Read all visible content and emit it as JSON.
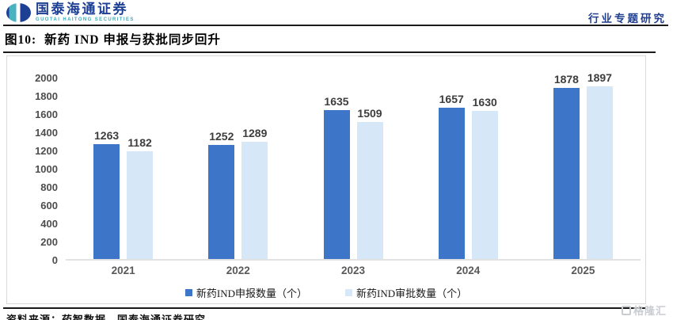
{
  "header": {
    "logo_name": "国泰海通证券",
    "logo_sub": "GUOTAI HAITONG SECURITIES",
    "report_type": "行业专题研究"
  },
  "figure": {
    "title_prefix": "图10:",
    "title": "新药 IND 申报与获批同步回升"
  },
  "chart_data": {
    "type": "bar",
    "title": "新药 IND 申报与获批同步回升",
    "categories": [
      "2021",
      "2022",
      "2023",
      "2024",
      "2025"
    ],
    "series": [
      {
        "name": "新药IND申报数量（个）",
        "color": "#3D76C9",
        "values": [
          1263,
          1252,
          1635,
          1657,
          1878
        ]
      },
      {
        "name": "新药IND审批数量（个）",
        "color": "#D6E8F8",
        "values": [
          1182,
          1289,
          1509,
          1630,
          1897
        ]
      }
    ],
    "xlabel": "",
    "ylabel": "",
    "ylim": [
      0,
      2000
    ],
    "ytick_step": 200,
    "grid": false,
    "legend_position": "bottom",
    "value_labels": true
  },
  "footer": {
    "source": "资料来源：药智数据，国泰海通证券研究",
    "watermark": "格隆汇"
  },
  "colors": {
    "brand_navy": "#1D3F94",
    "brand_teal": "#48B2C1",
    "bar_dark": "#3D76C9",
    "bar_light": "#D6E8F8",
    "axis_text": "#595959"
  }
}
